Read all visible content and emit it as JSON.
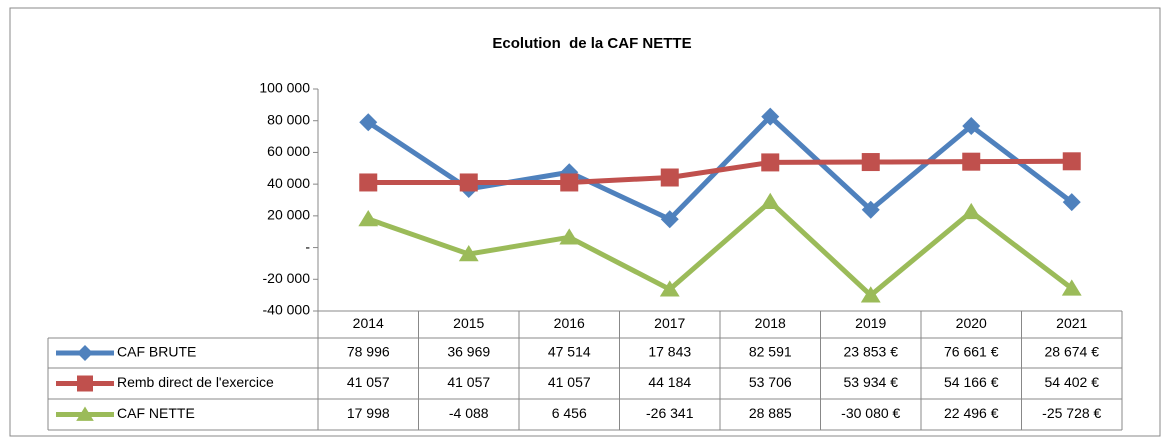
{
  "chart_data": {
    "type": "line",
    "title": "Ecolution  de la CAF NETTE",
    "categories": [
      "2014",
      "2015",
      "2016",
      "2017",
      "2018",
      "2019",
      "2020",
      "2021"
    ],
    "ylim": [
      -40000,
      100000
    ],
    "yticks": [
      {
        "value": -40000,
        "label": "-40 000"
      },
      {
        "value": -20000,
        "label": "-20 000"
      },
      {
        "value": 0,
        "label": "-"
      },
      {
        "value": 20000,
        "label": "20 000"
      },
      {
        "value": 40000,
        "label": "40 000"
      },
      {
        "value": 60000,
        "label": "60 000"
      },
      {
        "value": 80000,
        "label": "80 000"
      },
      {
        "value": 100000,
        "label": "100 000"
      }
    ],
    "grid": false,
    "series": [
      {
        "name": "CAF BRUTE",
        "color": "#4f81bd",
        "marker": "diamond",
        "values": [
          78996,
          36969,
          47514,
          17843,
          82591,
          23853,
          76661,
          28674
        ],
        "value_labels": [
          "78 996",
          "36 969",
          "47 514",
          "17 843",
          "82 591",
          "23 853 €",
          "76 661 €",
          "28 674 €"
        ]
      },
      {
        "name": "Remb direct de l'exercice",
        "color": "#c0504d",
        "marker": "square",
        "values": [
          41057,
          41057,
          41057,
          44184,
          53706,
          53934,
          54166,
          54402
        ],
        "value_labels": [
          "41 057",
          "41 057",
          "41 057",
          "44 184",
          "53 706",
          "53 934 €",
          "54 166 €",
          "54 402 €"
        ]
      },
      {
        "name": "CAF NETTE",
        "color": "#9bbb59",
        "marker": "triangle",
        "values": [
          17998,
          -4088,
          6456,
          -26341,
          28885,
          -30080,
          22496,
          -25728
        ],
        "value_labels": [
          "17 998",
          "-4 088",
          "6 456",
          "-26 341",
          "28 885",
          "-30 080 €",
          "22 496 €",
          "-25 728 €"
        ]
      }
    ]
  }
}
